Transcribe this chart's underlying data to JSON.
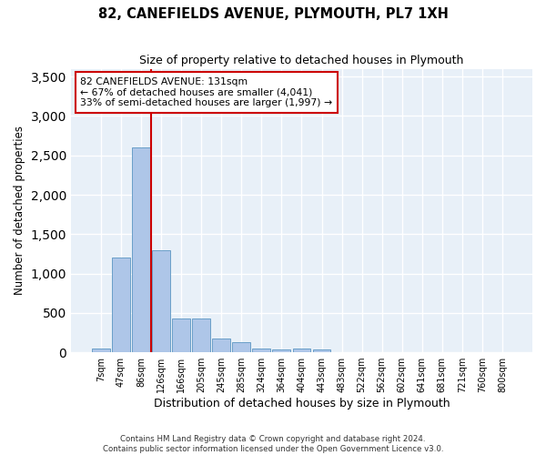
{
  "title": "82, CANEFIELDS AVENUE, PLYMOUTH, PL7 1XH",
  "subtitle": "Size of property relative to detached houses in Plymouth",
  "xlabel": "Distribution of detached houses by size in Plymouth",
  "ylabel": "Number of detached properties",
  "bar_color": "#aec6e8",
  "bar_edge_color": "#6a9fc8",
  "background_color": "#e8f0f8",
  "grid_color": "#ffffff",
  "annotation_box_color": "#cc0000",
  "vline_color": "#cc0000",
  "categories": [
    "7sqm",
    "47sqm",
    "86sqm",
    "126sqm",
    "166sqm",
    "205sqm",
    "245sqm",
    "285sqm",
    "324sqm",
    "364sqm",
    "404sqm",
    "443sqm",
    "483sqm",
    "522sqm",
    "562sqm",
    "602sqm",
    "641sqm",
    "681sqm",
    "721sqm",
    "760sqm",
    "800sqm"
  ],
  "values": [
    50,
    1200,
    2600,
    1300,
    430,
    430,
    175,
    130,
    50,
    30,
    50,
    30,
    0,
    0,
    0,
    0,
    0,
    0,
    0,
    0,
    0
  ],
  "ylim": [
    0,
    3600
  ],
  "yticks": [
    0,
    500,
    1000,
    1500,
    2000,
    2500,
    3000,
    3500
  ],
  "vline_x_index": 2.5,
  "annotation_text": "82 CANEFIELDS AVENUE: 131sqm\n← 67% of detached houses are smaller (4,041)\n33% of semi-detached houses are larger (1,997) →",
  "footer_line1": "Contains HM Land Registry data © Crown copyright and database right 2024.",
  "footer_line2": "Contains public sector information licensed under the Open Government Licence v3.0.",
  "figsize": [
    6.0,
    5.0
  ],
  "dpi": 100
}
